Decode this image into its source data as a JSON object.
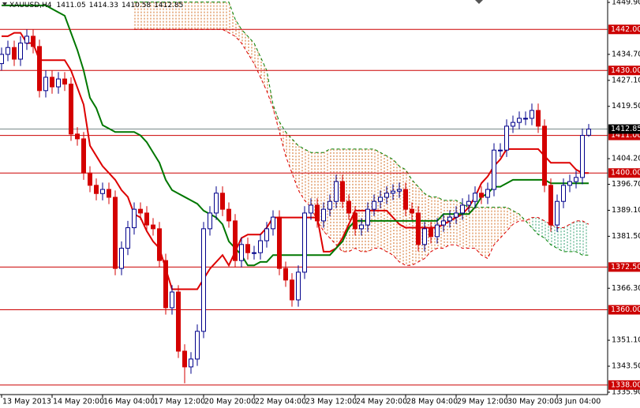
{
  "chart_data": {
    "type": "candlestick",
    "title": "XAUUSD,H4",
    "categories": [
      "13 May 2013",
      null,
      null,
      null,
      null,
      null,
      null,
      null,
      "14 May 20:00",
      null,
      null,
      null,
      null,
      null,
      null,
      null,
      "16 May 04:00",
      null,
      null,
      null,
      null,
      null,
      null,
      null,
      "17 May 12:00",
      null,
      null,
      null,
      null,
      null,
      null,
      null,
      "20 May 20:00",
      null,
      null,
      null,
      null,
      null,
      null,
      null,
      "22 May 04:00",
      null,
      null,
      null,
      null,
      null,
      null,
      null,
      "23 May 12:00",
      null,
      null,
      null,
      null,
      null,
      null,
      null,
      "24 May 20:00",
      null,
      null,
      null,
      null,
      null,
      null,
      null,
      "28 May 04:00",
      null,
      null,
      null,
      null,
      null,
      null,
      null,
      "29 May 12:00",
      null,
      null,
      null,
      null,
      null,
      null,
      null,
      "30 May 20:00",
      null,
      null,
      null,
      null,
      null,
      null,
      null,
      "3 Jun 04:00",
      null,
      null,
      null,
      null,
      null
    ],
    "open": [
      1432,
      1434.7,
      1436.7,
      1433.3,
      1438,
      1440,
      1437,
      1424.1,
      1428,
      1425.2,
      1427.5,
      1426,
      1411.4,
      1410,
      1400,
      1396.4,
      1394,
      1395.2,
      1392.9,
      1372.1,
      1378,
      1384,
      1389.4,
      1388.3,
      1384.8,
      1383.7,
      1374.4,
      1360.6,
      1365.2,
      1347.9,
      1343.3,
      1345.6,
      1353.7,
      1383.7,
      1388.3,
      1394.1,
      1389.4,
      1386,
      1374.4,
      1379.1,
      1376.7,
      1376.7,
      1380.2,
      1383.7,
      1387.1,
      1372.1,
      1368.7,
      1362.9,
      1371,
      1388.3,
      1390.6,
      1386,
      1389.4,
      1391.7,
      1397.5,
      1391.7,
      1388.3,
      1383.7,
      1384.8,
      1389.4,
      1391.7,
      1392.9,
      1394.1,
      1394.7,
      1395.2,
      1389.4,
      1388.3,
      1379.1,
      1383.7,
      1381.4,
      1384.8,
      1386,
      1387.1,
      1388.3,
      1390.6,
      1391.7,
      1394.1,
      1392.9,
      1395.2,
      1406.7,
      1406.7,
      1413.7,
      1414.8,
      1416,
      1416,
      1418.3,
      1413.7,
      1396.4,
      1384.8,
      1391.7,
      1396.4,
      1397.5,
      1398.7,
      1411.05
    ],
    "high": [
      1436.7,
      1438.7,
      1438.7,
      1440,
      1442,
      1442,
      1439,
      1430,
      1430,
      1429.5,
      1429.5,
      1428,
      1413.4,
      1412,
      1402,
      1398.4,
      1397.2,
      1397.2,
      1394.9,
      1380,
      1386,
      1391.4,
      1391.4,
      1390.3,
      1386.8,
      1385.7,
      1376.4,
      1367.2,
      1367.2,
      1349.9,
      1347.6,
      1355.7,
      1385.7,
      1390.3,
      1396.1,
      1396.1,
      1391.4,
      1388,
      1381.1,
      1381.1,
      1378.7,
      1382.2,
      1385.7,
      1389.1,
      1389.1,
      1374.1,
      1370.7,
      1373,
      1390.3,
      1392.6,
      1392.6,
      1391.4,
      1393.7,
      1399.5,
      1399.5,
      1393.7,
      1390.3,
      1386.8,
      1391.4,
      1393.7,
      1394.9,
      1396.1,
      1396.7,
      1397.2,
      1397.2,
      1391.4,
      1390.3,
      1385.7,
      1385.7,
      1386.8,
      1388,
      1389.1,
      1390.3,
      1392.6,
      1393.7,
      1396.1,
      1396.1,
      1397.2,
      1408.7,
      1408.7,
      1415.7,
      1416.8,
      1418,
      1418,
      1420.3,
      1420.3,
      1415.7,
      1398.4,
      1393.7,
      1398.4,
      1399.5,
      1400.7,
      1413,
      1414.33
    ],
    "low": [
      1430,
      1432.7,
      1431.3,
      1431.3,
      1436,
      1435,
      1422.1,
      1422.1,
      1423.2,
      1423.2,
      1424,
      1409.4,
      1408,
      1398,
      1394.4,
      1392,
      1392,
      1390.9,
      1370.1,
      1370.1,
      1376,
      1382,
      1386.3,
      1382.8,
      1381.7,
      1372.4,
      1358.6,
      1358.6,
      1345.9,
      1338.5,
      1341.3,
      1343.6,
      1351.7,
      1381.7,
      1386.3,
      1387.4,
      1384,
      1372.4,
      1372.4,
      1374.7,
      1374.7,
      1374.7,
      1378.2,
      1381.7,
      1370.1,
      1366.7,
      1360.9,
      1360.9,
      1369,
      1386.3,
      1384,
      1384,
      1387.4,
      1389.7,
      1389.7,
      1386.3,
      1381.7,
      1381.7,
      1382.8,
      1387.4,
      1389.7,
      1390.9,
      1392.1,
      1392.7,
      1387.4,
      1386.3,
      1377.1,
      1377.1,
      1379.4,
      1379.4,
      1382.8,
      1384,
      1385.1,
      1386.3,
      1388.6,
      1389.7,
      1390.9,
      1390.9,
      1393.2,
      1404.7,
      1404.7,
      1411.7,
      1412.8,
      1414,
      1414,
      1411.7,
      1394.4,
      1382.8,
      1382.8,
      1389.7,
      1394.4,
      1395.5,
      1396.7,
      1410.58
    ],
    "close": [
      1434.7,
      1436.7,
      1433.3,
      1438,
      1440,
      1437,
      1424.1,
      1428,
      1425.2,
      1427.5,
      1426,
      1411.4,
      1410,
      1400,
      1396.4,
      1394,
      1395.2,
      1392.9,
      1372.1,
      1378,
      1384,
      1389.4,
      1388.3,
      1384.8,
      1383.7,
      1374.4,
      1360.6,
      1365.2,
      1347.9,
      1343.3,
      1345.6,
      1353.7,
      1383.7,
      1388.3,
      1394.1,
      1389.4,
      1386,
      1374.4,
      1379.1,
      1376.7,
      1376.7,
      1380.2,
      1383.7,
      1387.1,
      1372.1,
      1368.7,
      1362.9,
      1371,
      1388.3,
      1390.6,
      1386,
      1389.4,
      1391.7,
      1397.5,
      1391.7,
      1388.3,
      1383.7,
      1384.8,
      1389.4,
      1391.7,
      1392.9,
      1394.1,
      1394.7,
      1395.2,
      1389.4,
      1388.3,
      1379.1,
      1383.7,
      1381.4,
      1384.8,
      1386,
      1387.1,
      1388.3,
      1390.6,
      1391.7,
      1394.1,
      1392.9,
      1395.2,
      1406.7,
      1406.7,
      1413.7,
      1414.8,
      1416,
      1416,
      1418.3,
      1413.7,
      1396.4,
      1384.8,
      1391.7,
      1396.4,
      1397.5,
      1398.7,
      1411,
      1412.85
    ],
    "up_color": "#00008b",
    "down_color": "#d40000",
    "lines": [
      {
        "color": "#dd0000",
        "values": [
          1440,
          1440,
          1441,
          1441,
          1438,
          1438,
          1433,
          1433,
          1433,
          1433,
          1433,
          1430,
          1425,
          1420,
          1408,
          1405,
          1402,
          1400,
          1398,
          1395,
          1393,
          1388,
          1387,
          1383,
          1380,
          1378,
          1372,
          1366,
          1366,
          1366,
          1366,
          1366,
          1369,
          1372,
          1374,
          1376,
          1373,
          1377,
          1381,
          1382,
          1382,
          1382,
          1384,
          1387,
          1387,
          1387,
          1387,
          1387,
          1387,
          1387,
          1387,
          1377,
          1377,
          1378,
          1381,
          1385,
          1389,
          1389,
          1389,
          1389,
          1389,
          1389,
          1387,
          1385,
          1384,
          1384,
          1384,
          1384,
          1384,
          1384,
          1385,
          1386,
          1387,
          1388,
          1390,
          1393,
          1397,
          1399,
          1402,
          1404,
          1407,
          1407,
          1407,
          1407,
          1407,
          1407,
          1405,
          1403,
          1403,
          1403,
          1403,
          1401,
          1400,
          1400
        ]
      },
      {
        "color": "#007700",
        "values": [
          1449,
          1449,
          1449,
          1449,
          1449,
          1449,
          1449,
          1449,
          1448,
          1447,
          1446,
          1441,
          1436,
          1430,
          1422,
          1419,
          1414,
          1413,
          1412,
          1412,
          1412,
          1412,
          1411,
          1409,
          1406,
          1403,
          1398,
          1395,
          1394,
          1393,
          1392,
          1391,
          1389,
          1388,
          1387,
          1385,
          1380,
          1378,
          1376,
          1373,
          1373,
          1374,
          1374,
          1376,
          1376,
          1376,
          1376,
          1376,
          1376,
          1376,
          1376,
          1376,
          1376,
          1378,
          1380,
          1384,
          1386,
          1386,
          1386,
          1386,
          1386,
          1386,
          1386,
          1386,
          1386,
          1386,
          1386,
          1386,
          1386,
          1386,
          1388,
          1388,
          1388,
          1388,
          1388,
          1390,
          1393,
          1394,
          1396,
          1396,
          1397,
          1398,
          1398,
          1398,
          1398,
          1398,
          1398,
          1397,
          1397,
          1397,
          1397,
          1397,
          1397,
          1397
        ]
      }
    ],
    "cloud": {
      "span_a": [
        null,
        null,
        null,
        null,
        null,
        null,
        null,
        null,
        null,
        null,
        null,
        null,
        null,
        null,
        null,
        null,
        null,
        null,
        null,
        null,
        null,
        1450,
        1450,
        1450,
        1450,
        1450,
        1450,
        1450,
        1450,
        1450,
        1450,
        1450,
        1450,
        1450,
        1450,
        1450,
        1450,
        1445,
        1442,
        1440,
        1438,
        1434,
        1430,
        1420,
        1415,
        1412,
        1410,
        1408,
        1407,
        1406,
        1406,
        1406,
        1407,
        1407,
        1407,
        1407,
        1407,
        1407,
        1407,
        1407,
        1406,
        1405,
        1404,
        1402,
        1401,
        1398,
        1396,
        1394,
        1393,
        1393,
        1392,
        1392,
        1392,
        1391,
        1390,
        1390,
        1390,
        1390,
        1390,
        1390,
        1390,
        1389,
        1388,
        1386,
        1384,
        1382,
        1381,
        1379,
        1378,
        1377,
        1377,
        1377,
        1376,
        1376
      ],
      "span_b": [
        null,
        null,
        null,
        null,
        null,
        null,
        null,
        null,
        null,
        null,
        null,
        null,
        null,
        null,
        null,
        null,
        null,
        null,
        null,
        null,
        null,
        1442,
        1442,
        1442,
        1442,
        1442,
        1442,
        1442,
        1442,
        1442,
        1442,
        1442,
        1442,
        1442,
        1442,
        1442,
        1441,
        1440,
        1438,
        1435,
        1432,
        1428,
        1424,
        1419,
        1412,
        1405,
        1400,
        1395,
        1392,
        1390,
        1386,
        1383,
        1381,
        1379,
        1377,
        1377,
        1378,
        1377,
        1377,
        1378,
        1378,
        1377,
        1376,
        1374,
        1373,
        1373,
        1374,
        1375,
        1377,
        1378,
        1378,
        1379,
        1379,
        1378,
        1378,
        1378,
        1376,
        1375,
        1379,
        1381,
        1383,
        1385,
        1386,
        1386,
        1387,
        1387,
        1386,
        1385,
        1384,
        1384,
        1385,
        1386,
        1386,
        1385
      ],
      "span_a_color": "#008000",
      "span_b_color": "#dd0000",
      "up_fill": "#d2691e",
      "down_fill": "#2e9e6e"
    },
    "levels": [
      {
        "value": 1442,
        "label": "1442.00"
      },
      {
        "value": 1430,
        "label": "1430.00"
      },
      {
        "value": 1411,
        "label": "1411.00"
      },
      {
        "value": 1400,
        "label": "1400.00"
      },
      {
        "value": 1372.5,
        "label": "1372.50"
      },
      {
        "value": 1360,
        "label": "1360.00"
      },
      {
        "value": 1338,
        "label": "1338.00"
      }
    ],
    "level_color": "#cc0000",
    "ylim": [
      1335.2,
      1450.6
    ],
    "yticks": [
      {
        "value": 1449.9,
        "label": "1449.90"
      },
      {
        "value": 1434.7,
        "label": "1434.70"
      },
      {
        "value": 1427.1,
        "label": "1427.10"
      },
      {
        "value": 1419.5,
        "label": "1419.50"
      },
      {
        "value": 1404.2,
        "label": "1404.20"
      },
      {
        "value": 1396.7,
        "label": "1396.70"
      },
      {
        "value": 1389.1,
        "label": "1389.10"
      },
      {
        "value": 1381.5,
        "label": "1381.50"
      },
      {
        "value": 1366.3,
        "label": "1366.30"
      },
      {
        "value": 1351.1,
        "label": "1351.10"
      },
      {
        "value": 1343.5,
        "label": "1343.50"
      },
      {
        "value": 1335.9,
        "label": "1335.90"
      }
    ]
  }
}
